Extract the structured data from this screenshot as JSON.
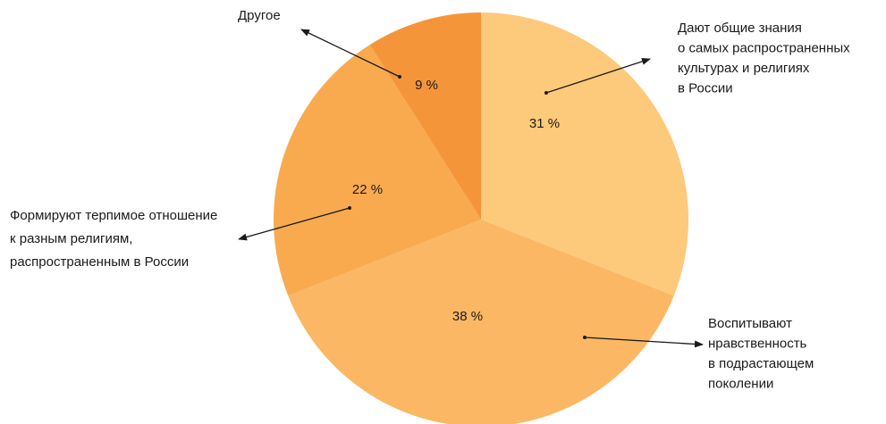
{
  "chart_data": {
    "type": "pie",
    "title": "",
    "slices": [
      {
        "label": "Дают общие знания о самых распространенных культурах и религиях в России",
        "label_lines": [
          "Дают общие знания",
          "о самых распространенных",
          "культурах и религиях",
          "в России"
        ],
        "value": 31,
        "value_text": "31 %",
        "color": "#fdc97b"
      },
      {
        "label": "Воспитывают нравственность в подрастающем поколении",
        "label_lines": [
          "Воспитывают",
          "нравственность",
          "в подрастающем",
          "поколении"
        ],
        "value": 38,
        "value_text": "38 %",
        "color": "#fbb764"
      },
      {
        "label": "Формируют терпимое отношение к разным религиям, распространенным в России",
        "label_lines": [
          "Формируют терпимое отношение",
          "к разным религиям,",
          "распространенным в России"
        ],
        "value": 22,
        "value_text": "22 %",
        "color": "#f9aa4f"
      },
      {
        "label": "Другое",
        "label_lines": [
          "Другое"
        ],
        "value": 9,
        "value_text": "9 %",
        "color": "#f5953a"
      }
    ],
    "start_angle_deg": 0,
    "direction": "clockwise",
    "legend": "none (external callout labels with arrows)"
  }
}
